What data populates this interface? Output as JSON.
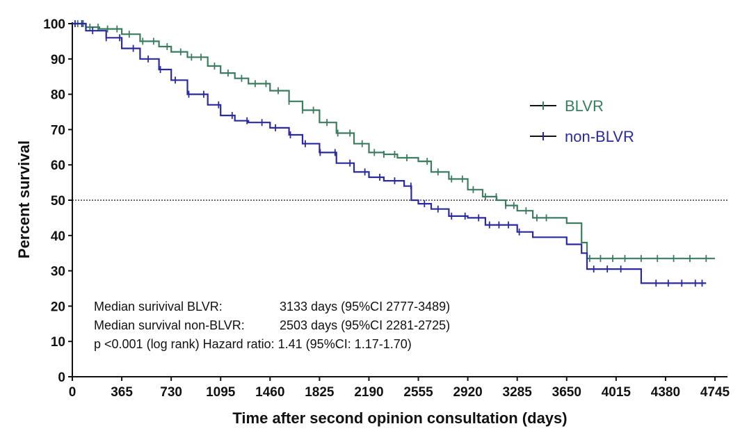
{
  "chart_data": {
    "type": "line",
    "subtype": "kaplan-meier step survival curve",
    "xlabel": "Time after second opinion consultation (days)",
    "ylabel": "Percent survival",
    "xlim": [
      0,
      4745
    ],
    "ylim": [
      0,
      100
    ],
    "xticks": [
      "0",
      "365",
      "730",
      "1095",
      "1460",
      "1825",
      "2190",
      "2555",
      "2920",
      "3285",
      "3650",
      "4015",
      "4380",
      "4745"
    ],
    "yticks": [
      "0",
      "10",
      "20",
      "30",
      "40",
      "50",
      "60",
      "70",
      "80",
      "90",
      "100"
    ],
    "reference_line": {
      "y": 50,
      "style": "dotted"
    },
    "grid": false,
    "legend_position": "right-middle",
    "series": [
      {
        "name": "BLVR",
        "color": "#3a7d5e",
        "x": [
          0,
          100,
          200,
          365,
          500,
          640,
          730,
          850,
          1000,
          1095,
          1200,
          1300,
          1460,
          1600,
          1700,
          1825,
          1950,
          2080,
          2190,
          2300,
          2400,
          2555,
          2650,
          2780,
          2920,
          3030,
          3133,
          3200,
          3285,
          3400,
          3650,
          3760,
          3800,
          4745
        ],
        "values": [
          100,
          99,
          98.5,
          97,
          95,
          93.5,
          92,
          90.5,
          88,
          86,
          84.5,
          83,
          81,
          78,
          75.5,
          72,
          69,
          66,
          63.5,
          63,
          62,
          61,
          58,
          56,
          53,
          51,
          50,
          48.5,
          47,
          45,
          43.5,
          38,
          33.5,
          33.5
        ],
        "censor_x": [
          40,
          80,
          130,
          190,
          260,
          330,
          420,
          520,
          600,
          700,
          800,
          880,
          950,
          1050,
          1150,
          1250,
          1350,
          1430,
          1520,
          1600,
          1700,
          1780,
          1880,
          1960,
          2050,
          2140,
          2230,
          2300,
          2380,
          2470,
          2620,
          2700,
          2800,
          2880,
          2960,
          3050,
          3130,
          3200,
          3260,
          3350,
          3430,
          3500,
          3820,
          3900,
          3990,
          4080,
          4200,
          4320,
          4440,
          4560,
          4680
        ]
      },
      {
        "name": "non-BLVR",
        "color": "#2a2aa0",
        "x": [
          0,
          100,
          250,
          365,
          500,
          640,
          730,
          850,
          1000,
          1095,
          1200,
          1300,
          1460,
          1600,
          1700,
          1825,
          1950,
          2080,
          2190,
          2300,
          2450,
          2503,
          2555,
          2650,
          2780,
          2920,
          3050,
          3285,
          3400,
          3650,
          3760,
          3800,
          4200,
          4280,
          4680
        ],
        "values": [
          100,
          98,
          96,
          93,
          90,
          87,
          84,
          80,
          77,
          74,
          72.5,
          72,
          70.5,
          68.5,
          66,
          63.5,
          60.5,
          58,
          56.5,
          55.5,
          54,
          50,
          49,
          47.5,
          45.5,
          45,
          43,
          41,
          39.5,
          37.5,
          35,
          30.5,
          26.5,
          26.5,
          26.5
        ],
        "censor_x": [
          20,
          70,
          150,
          250,
          350,
          450,
          560,
          650,
          760,
          860,
          970,
          1080,
          1180,
          1290,
          1400,
          1500,
          1610,
          1720,
          1830,
          1940,
          2050,
          2160,
          2270,
          2380,
          2500,
          2600,
          2700,
          2800,
          2900,
          3000,
          3080,
          3150,
          3220,
          3300,
          3850,
          3950,
          4050,
          4310,
          4400,
          4500,
          4600,
          4650
        ]
      }
    ],
    "annotations": [
      {
        "label": "Median surivival BLVR:",
        "value": "3133 days (95%CI 2777-3489)"
      },
      {
        "label": "Median survival non-BLVR:",
        "value": "2503 days (95%CI 2281-2725)"
      },
      {
        "label": "p <0.001 (log rank) Hazard ratio: 1.41 (95%CI: 1.17-1.70)",
        "value": ""
      }
    ]
  }
}
